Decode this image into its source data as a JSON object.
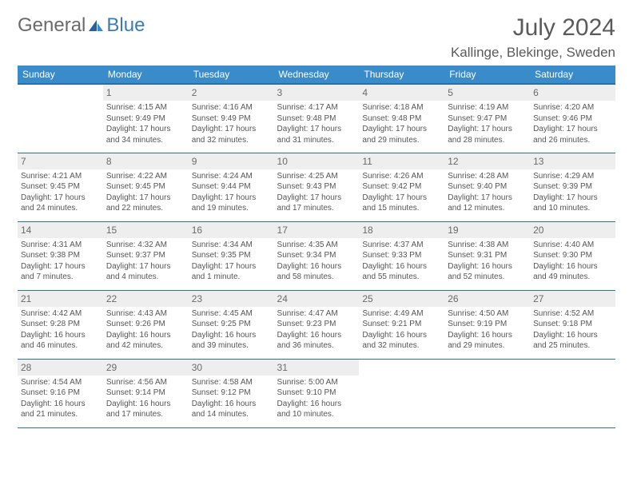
{
  "logo": {
    "text1": "General",
    "text2": "Blue"
  },
  "title": "July 2024",
  "location": "Kallinge, Blekinge, Sweden",
  "colors": {
    "header_bg": "#3a8bc9",
    "header_border": "#2e6fa3",
    "daynum_bg": "#eeeeee",
    "text": "#555555",
    "logo_gray": "#6a6a6a",
    "logo_blue": "#3a7ab8"
  },
  "day_names": [
    "Sunday",
    "Monday",
    "Tuesday",
    "Wednesday",
    "Thursday",
    "Friday",
    "Saturday"
  ],
  "weeks": [
    [
      {
        "n": "",
        "l": []
      },
      {
        "n": "1",
        "l": [
          "Sunrise: 4:15 AM",
          "Sunset: 9:49 PM",
          "Daylight: 17 hours",
          "and 34 minutes."
        ]
      },
      {
        "n": "2",
        "l": [
          "Sunrise: 4:16 AM",
          "Sunset: 9:49 PM",
          "Daylight: 17 hours",
          "and 32 minutes."
        ]
      },
      {
        "n": "3",
        "l": [
          "Sunrise: 4:17 AM",
          "Sunset: 9:48 PM",
          "Daylight: 17 hours",
          "and 31 minutes."
        ]
      },
      {
        "n": "4",
        "l": [
          "Sunrise: 4:18 AM",
          "Sunset: 9:48 PM",
          "Daylight: 17 hours",
          "and 29 minutes."
        ]
      },
      {
        "n": "5",
        "l": [
          "Sunrise: 4:19 AM",
          "Sunset: 9:47 PM",
          "Daylight: 17 hours",
          "and 28 minutes."
        ]
      },
      {
        "n": "6",
        "l": [
          "Sunrise: 4:20 AM",
          "Sunset: 9:46 PM",
          "Daylight: 17 hours",
          "and 26 minutes."
        ]
      }
    ],
    [
      {
        "n": "7",
        "l": [
          "Sunrise: 4:21 AM",
          "Sunset: 9:45 PM",
          "Daylight: 17 hours",
          "and 24 minutes."
        ]
      },
      {
        "n": "8",
        "l": [
          "Sunrise: 4:22 AM",
          "Sunset: 9:45 PM",
          "Daylight: 17 hours",
          "and 22 minutes."
        ]
      },
      {
        "n": "9",
        "l": [
          "Sunrise: 4:24 AM",
          "Sunset: 9:44 PM",
          "Daylight: 17 hours",
          "and 19 minutes."
        ]
      },
      {
        "n": "10",
        "l": [
          "Sunrise: 4:25 AM",
          "Sunset: 9:43 PM",
          "Daylight: 17 hours",
          "and 17 minutes."
        ]
      },
      {
        "n": "11",
        "l": [
          "Sunrise: 4:26 AM",
          "Sunset: 9:42 PM",
          "Daylight: 17 hours",
          "and 15 minutes."
        ]
      },
      {
        "n": "12",
        "l": [
          "Sunrise: 4:28 AM",
          "Sunset: 9:40 PM",
          "Daylight: 17 hours",
          "and 12 minutes."
        ]
      },
      {
        "n": "13",
        "l": [
          "Sunrise: 4:29 AM",
          "Sunset: 9:39 PM",
          "Daylight: 17 hours",
          "and 10 minutes."
        ]
      }
    ],
    [
      {
        "n": "14",
        "l": [
          "Sunrise: 4:31 AM",
          "Sunset: 9:38 PM",
          "Daylight: 17 hours",
          "and 7 minutes."
        ]
      },
      {
        "n": "15",
        "l": [
          "Sunrise: 4:32 AM",
          "Sunset: 9:37 PM",
          "Daylight: 17 hours",
          "and 4 minutes."
        ]
      },
      {
        "n": "16",
        "l": [
          "Sunrise: 4:34 AM",
          "Sunset: 9:35 PM",
          "Daylight: 17 hours",
          "and 1 minute."
        ]
      },
      {
        "n": "17",
        "l": [
          "Sunrise: 4:35 AM",
          "Sunset: 9:34 PM",
          "Daylight: 16 hours",
          "and 58 minutes."
        ]
      },
      {
        "n": "18",
        "l": [
          "Sunrise: 4:37 AM",
          "Sunset: 9:33 PM",
          "Daylight: 16 hours",
          "and 55 minutes."
        ]
      },
      {
        "n": "19",
        "l": [
          "Sunrise: 4:38 AM",
          "Sunset: 9:31 PM",
          "Daylight: 16 hours",
          "and 52 minutes."
        ]
      },
      {
        "n": "20",
        "l": [
          "Sunrise: 4:40 AM",
          "Sunset: 9:30 PM",
          "Daylight: 16 hours",
          "and 49 minutes."
        ]
      }
    ],
    [
      {
        "n": "21",
        "l": [
          "Sunrise: 4:42 AM",
          "Sunset: 9:28 PM",
          "Daylight: 16 hours",
          "and 46 minutes."
        ]
      },
      {
        "n": "22",
        "l": [
          "Sunrise: 4:43 AM",
          "Sunset: 9:26 PM",
          "Daylight: 16 hours",
          "and 42 minutes."
        ]
      },
      {
        "n": "23",
        "l": [
          "Sunrise: 4:45 AM",
          "Sunset: 9:25 PM",
          "Daylight: 16 hours",
          "and 39 minutes."
        ]
      },
      {
        "n": "24",
        "l": [
          "Sunrise: 4:47 AM",
          "Sunset: 9:23 PM",
          "Daylight: 16 hours",
          "and 36 minutes."
        ]
      },
      {
        "n": "25",
        "l": [
          "Sunrise: 4:49 AM",
          "Sunset: 9:21 PM",
          "Daylight: 16 hours",
          "and 32 minutes."
        ]
      },
      {
        "n": "26",
        "l": [
          "Sunrise: 4:50 AM",
          "Sunset: 9:19 PM",
          "Daylight: 16 hours",
          "and 29 minutes."
        ]
      },
      {
        "n": "27",
        "l": [
          "Sunrise: 4:52 AM",
          "Sunset: 9:18 PM",
          "Daylight: 16 hours",
          "and 25 minutes."
        ]
      }
    ],
    [
      {
        "n": "28",
        "l": [
          "Sunrise: 4:54 AM",
          "Sunset: 9:16 PM",
          "Daylight: 16 hours",
          "and 21 minutes."
        ]
      },
      {
        "n": "29",
        "l": [
          "Sunrise: 4:56 AM",
          "Sunset: 9:14 PM",
          "Daylight: 16 hours",
          "and 17 minutes."
        ]
      },
      {
        "n": "30",
        "l": [
          "Sunrise: 4:58 AM",
          "Sunset: 9:12 PM",
          "Daylight: 16 hours",
          "and 14 minutes."
        ]
      },
      {
        "n": "31",
        "l": [
          "Sunrise: 5:00 AM",
          "Sunset: 9:10 PM",
          "Daylight: 16 hours",
          "and 10 minutes."
        ]
      },
      {
        "n": "",
        "l": []
      },
      {
        "n": "",
        "l": []
      },
      {
        "n": "",
        "l": []
      }
    ]
  ]
}
